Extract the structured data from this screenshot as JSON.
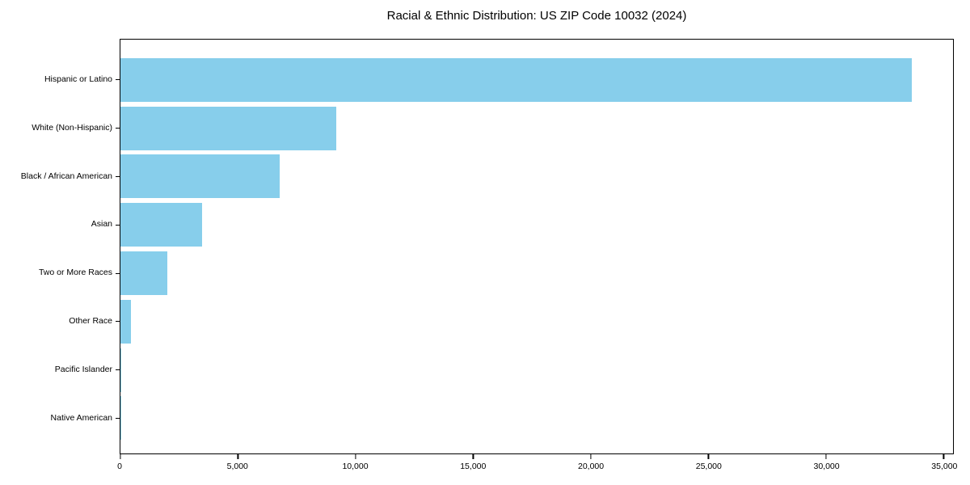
{
  "chart_data": {
    "type": "bar",
    "orientation": "horizontal",
    "title": "Racial & Ethnic Distribution: US ZIP Code 10032 (2024)",
    "categories": [
      "Hispanic or Latino",
      "White (Non-Hispanic)",
      "Black / African American",
      "Asian",
      "Two or More Races",
      "Other Race",
      "Pacific Islander",
      "Native American"
    ],
    "values": [
      33650,
      9180,
      6780,
      3460,
      2010,
      450,
      25,
      15
    ],
    "xlabel": "",
    "ylabel": "",
    "xlim": [
      0,
      35400
    ],
    "x_ticks": [
      0,
      5000,
      10000,
      15000,
      20000,
      25000,
      30000,
      35000
    ],
    "x_tick_labels": [
      "0",
      "5,000",
      "10,000",
      "15,000",
      "20,000",
      "25,000",
      "30,000",
      "35,000"
    ],
    "bar_color": "#87CEEB",
    "spine_color": "#000000",
    "grid": false,
    "legend": null
  }
}
